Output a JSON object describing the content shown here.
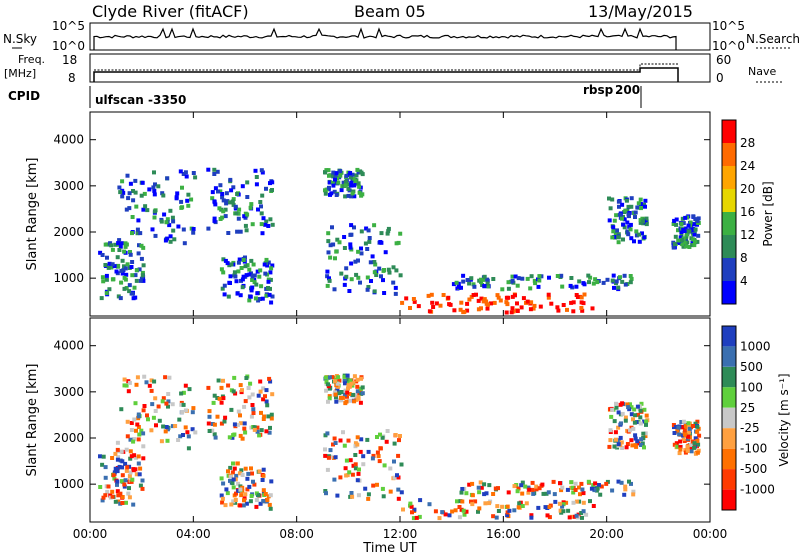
{
  "header": {
    "station": "Clyde River (fitACF)",
    "beam": "Beam 05",
    "date": "13/May/2015"
  },
  "top_panel": {
    "left_label": "N.Sky",
    "right_label": "N.Search",
    "left_ticks": [
      "10^5",
      "10^0"
    ],
    "right_ticks": [
      "10^5",
      "10^0"
    ]
  },
  "freq_panel": {
    "left_label_1": "Freq.",
    "left_label_2": "[MHz]",
    "left_ticks": [
      "18",
      "8"
    ],
    "right_label": "Nave",
    "right_ticks": [
      "60",
      "0"
    ]
  },
  "cpid": {
    "label": "CPID",
    "programs": [
      {
        "name": "ulfscan",
        "id": "-3350"
      },
      {
        "name": "rbsp",
        "id": "200"
      }
    ]
  },
  "chart_data": [
    {
      "type": "heatmap",
      "name": "Power panel",
      "ylabel": "Slant Range [km]",
      "xlabel": "Time UT",
      "x_ticks": [
        "00:00",
        "04:00",
        "08:00",
        "12:00",
        "16:00",
        "20:00",
        "00:00"
      ],
      "y_ticks": [
        1000,
        2000,
        3000,
        4000
      ],
      "ylim": [
        180,
        4600
      ],
      "xlim_hours": [
        0,
        24
      ],
      "colorbar": {
        "label": "Power [dB]",
        "ticks": [
          "28",
          "24",
          "20",
          "16",
          "12",
          "8",
          "4"
        ],
        "colors": [
          "#ff0000",
          "#ff6a00",
          "#ffa500",
          "#e6d600",
          "#3cb043",
          "#2e8b57",
          "#1f3fbf",
          "#0000ff"
        ]
      }
    },
    {
      "type": "heatmap",
      "name": "Velocity panel",
      "ylabel": "Slant Range [km]",
      "xlabel": "Time UT",
      "x_ticks": [
        "00:00",
        "04:00",
        "08:00",
        "12:00",
        "16:00",
        "20:00",
        "00:00"
      ],
      "y_ticks": [
        1000,
        2000,
        3000,
        4000
      ],
      "ylim": [
        180,
        4600
      ],
      "xlim_hours": [
        0,
        24
      ],
      "colorbar": {
        "label": "Velocity [m s⁻¹]",
        "ticks": [
          "1000",
          "500",
          "100",
          "25",
          "-25",
          "-100",
          "-500",
          "-1000"
        ],
        "colors": [
          "#1f3fbf",
          "#3a6fb0",
          "#2e8b57",
          "#5fcf3c",
          "#c8c8c8",
          "#ffa040",
          "#ff7000",
          "#ff3a00",
          "#ff0000"
        ]
      }
    }
  ]
}
